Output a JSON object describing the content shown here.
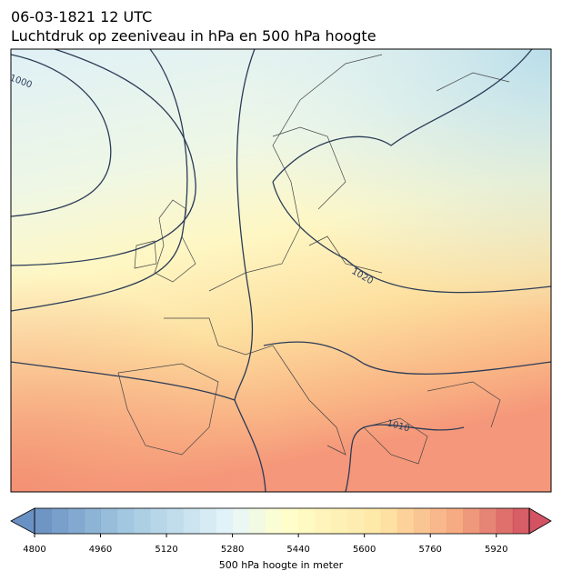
{
  "title": "06-03-1821 12 UTC",
  "subtitle": "Luchtdruk op zeeniveau in hPa en 500 hPa hoogte",
  "contour_labels": [
    "1000",
    "1020",
    "1010"
  ],
  "colorbar": {
    "label": "500 hPa hoogte in meter",
    "range": [
      4800,
      6000
    ],
    "step": 40,
    "ticks": [
      4800,
      4960,
      5120,
      5280,
      5440,
      5600,
      5760,
      5920
    ]
  }
}
